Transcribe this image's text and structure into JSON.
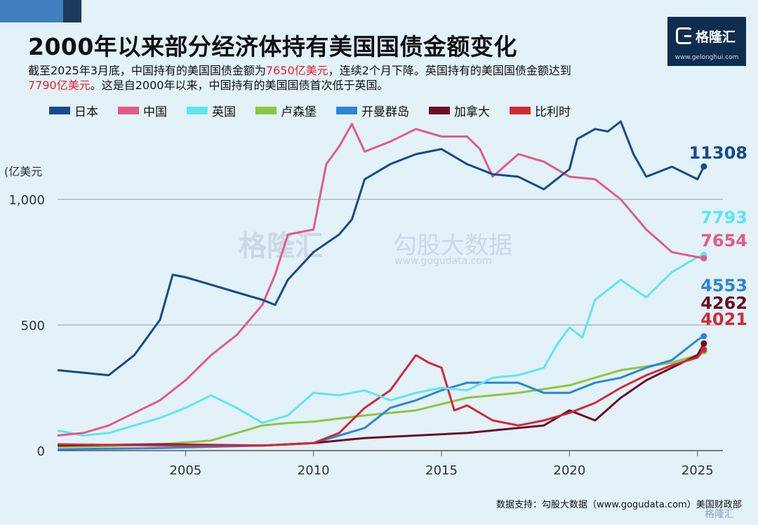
{
  "title": "2000年以来部分经济体持有美国国债金额变化",
  "subtitle": {
    "part1": "截至2025年3月底，中国持有的美国国债金额为",
    "highlight1": "7650亿美元",
    "part2": "，连续2个月下降。英国持有的美国国债金额达到",
    "highlight2": "7790亿美元",
    "part3": "。这是自2000年以来，中国持有的美国国债首次低于英国。"
  },
  "logo": {
    "text": "格隆汇",
    "url": "www.gelonghui.com"
  },
  "watermark": {
    "left": "格隆汇",
    "right": "勾股大数据",
    "url": "www.gogudata.com"
  },
  "source": "数据支持：勾股大数据（www.gogudata.com）美国财政部",
  "bottom_logo": "格隆汇",
  "colors": {
    "日本": "#164a8c",
    "中国": "#e05b89",
    "英国": "#5ee6f0",
    "卢森堡": "#8cc63f",
    "开曼群岛": "#2b86d6",
    "加拿大": "#6b0f25",
    "比利时": "#d02a36"
  },
  "chart_data": {
    "type": "line",
    "title": "2000年以来部分经济体持有美国国债金额变化",
    "ylabel": "(亿美元",
    "xlim": [
      2000,
      2025.5
    ],
    "ylim": [
      0,
      1300
    ],
    "y_ticks": [
      0,
      500,
      1000
    ],
    "y_tick_labels": [
      "0",
      "500",
      "1,000"
    ],
    "x_ticks": [
      2005,
      2010,
      2015,
      2020,
      2025
    ],
    "grid": "horizontal",
    "legend_position": "top",
    "end_labels": [
      "11308",
      "7793",
      "7654",
      "4553",
      "4262",
      "4021"
    ],
    "series": [
      {
        "name": "日本",
        "x": [
          2000,
          2001,
          2002,
          2003,
          2004,
          2004.5,
          2005,
          2006,
          2007,
          2008,
          2008.5,
          2009,
          2010,
          2011,
          2011.5,
          2012,
          2013,
          2014,
          2015,
          2016,
          2017,
          2018,
          2019,
          2020,
          2020.3,
          2021,
          2021.5,
          2022,
          2022.5,
          2023,
          2024,
          2025,
          2025.25
        ],
        "y": [
          320,
          310,
          300,
          380,
          520,
          700,
          690,
          660,
          630,
          600,
          580,
          680,
          790,
          860,
          920,
          1080,
          1140,
          1180,
          1200,
          1140,
          1100,
          1090,
          1040,
          1120,
          1240,
          1280,
          1270,
          1310,
          1180,
          1090,
          1130,
          1080,
          1130.8
        ]
      },
      {
        "name": "中国",
        "x": [
          2000,
          2001,
          2002,
          2003,
          2004,
          2005,
          2006,
          2007,
          2008,
          2008.5,
          2009,
          2010,
          2010.5,
          2011,
          2011.5,
          2012,
          2013,
          2014,
          2015,
          2016,
          2016.5,
          2017,
          2018,
          2019,
          2020,
          2021,
          2022,
          2023,
          2024,
          2025,
          2025.25
        ],
        "y": [
          60,
          70,
          100,
          150,
          200,
          280,
          380,
          460,
          580,
          700,
          860,
          880,
          1140,
          1210,
          1300,
          1190,
          1230,
          1280,
          1250,
          1250,
          1200,
          1090,
          1180,
          1150,
          1090,
          1080,
          1000,
          880,
          790,
          770,
          765.4
        ]
      },
      {
        "name": "英国",
        "x": [
          2000,
          2001,
          2002,
          2003,
          2004,
          2005,
          2006,
          2007,
          2008,
          2009,
          2010,
          2011,
          2012,
          2013,
          2014,
          2015,
          2016,
          2017,
          2018,
          2019,
          2019.5,
          2020,
          2020.5,
          2021,
          2022,
          2023,
          2024,
          2025,
          2025.25
        ],
        "y": [
          80,
          60,
          70,
          100,
          130,
          170,
          220,
          170,
          110,
          140,
          230,
          220,
          240,
          200,
          230,
          250,
          240,
          290,
          300,
          330,
          420,
          490,
          450,
          600,
          680,
          610,
          710,
          770,
          779.3
        ]
      },
      {
        "name": "卢森堡",
        "x": [
          2000,
          2002,
          2004,
          2006,
          2008,
          2009,
          2010,
          2012,
          2014,
          2016,
          2018,
          2020,
          2022,
          2024,
          2025,
          2025.25
        ],
        "y": [
          15,
          18,
          25,
          40,
          100,
          110,
          115,
          140,
          160,
          210,
          230,
          260,
          320,
          350,
          380,
          395
        ]
      },
      {
        "name": "开曼群岛",
        "x": [
          2000,
          2004,
          2008,
          2010,
          2012,
          2013,
          2014,
          2015,
          2016,
          2017,
          2018,
          2019,
          2020,
          2021,
          2022,
          2023,
          2024,
          2025,
          2025.25
        ],
        "y": [
          5,
          10,
          20,
          30,
          90,
          170,
          200,
          240,
          270,
          270,
          270,
          230,
          230,
          270,
          290,
          330,
          360,
          440,
          455.3
        ]
      },
      {
        "name": "加拿大",
        "x": [
          2000,
          2004,
          2008,
          2010,
          2012,
          2014,
          2016,
          2018,
          2019,
          2020,
          2021,
          2022,
          2023,
          2024,
          2025,
          2025.25
        ],
        "y": [
          20,
          25,
          20,
          30,
          50,
          60,
          70,
          90,
          100,
          160,
          120,
          210,
          280,
          330,
          380,
          426.2
        ]
      },
      {
        "name": "比利时",
        "x": [
          2000,
          2004,
          2008,
          2010,
          2011,
          2012,
          2013,
          2014,
          2014.5,
          2015,
          2015.5,
          2016,
          2017,
          2018,
          2019,
          2020,
          2021,
          2022,
          2023,
          2024,
          2025,
          2025.25
        ],
        "y": [
          25,
          20,
          20,
          30,
          70,
          170,
          240,
          380,
          350,
          330,
          160,
          180,
          120,
          100,
          120,
          150,
          190,
          250,
          300,
          340,
          370,
          402.1
        ]
      }
    ]
  }
}
